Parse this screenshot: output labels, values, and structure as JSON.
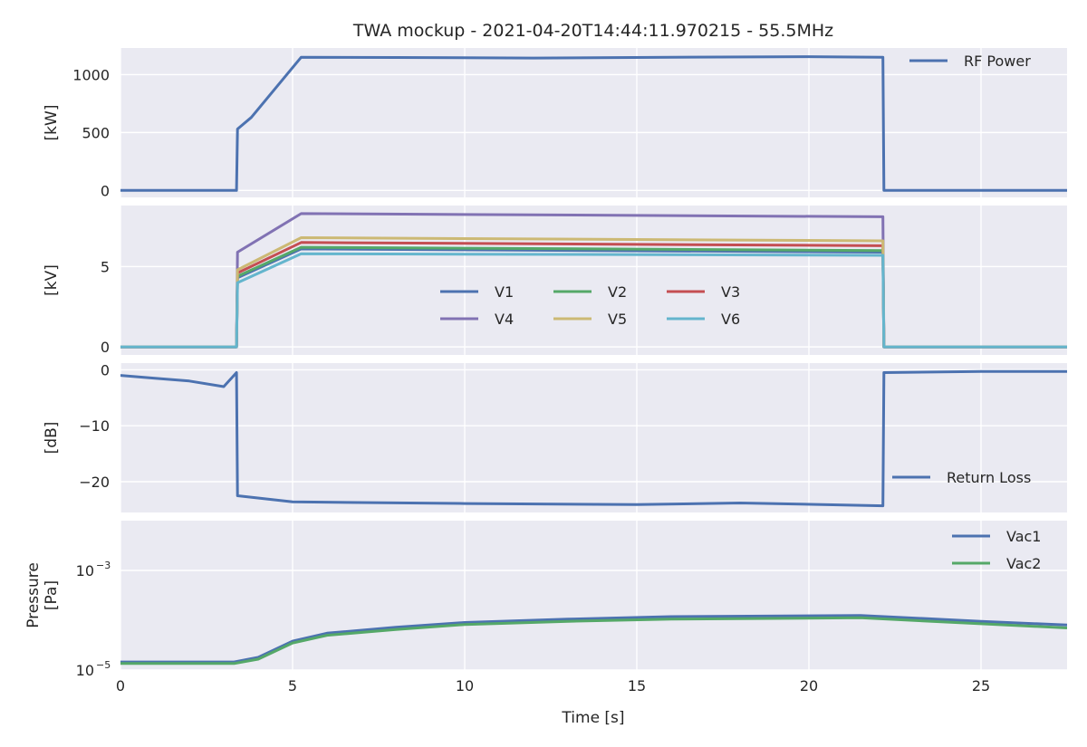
{
  "title": "TWA mockup - 2021-04-20T14:44:11.970215 - 55.5MHz",
  "xlabel": "Time [s]",
  "xlim": [
    0,
    27.5
  ],
  "xticks": [
    0,
    5,
    10,
    15,
    20,
    25
  ],
  "colors": {
    "background": "#EAEAF2",
    "grid": "#FFFFFF",
    "blue": "#4C72B0",
    "green": "#55A868",
    "red": "#C44E52",
    "purple": "#8172B3",
    "gold": "#CCB974",
    "cyan": "#64B5CD"
  },
  "chart_data": [
    {
      "type": "line",
      "ylabel": "[kW]",
      "ylim": [
        -60,
        1230
      ],
      "yticks": [
        0,
        500,
        1000
      ],
      "grid": true,
      "legend_location": "top-right",
      "series": [
        {
          "name": "RF Power",
          "color": "#4C72B0",
          "points": [
            [
              0,
              0
            ],
            [
              3.37,
              0
            ],
            [
              3.4,
              530
            ],
            [
              3.8,
              630
            ],
            [
              5.25,
              1150
            ],
            [
              8,
              1148
            ],
            [
              12,
              1143
            ],
            [
              16,
              1150
            ],
            [
              20,
              1155
            ],
            [
              22.15,
              1150
            ],
            [
              22.18,
              0
            ],
            [
              27.5,
              0
            ]
          ]
        }
      ]
    },
    {
      "type": "line",
      "ylabel": "[kV]",
      "ylim": [
        -0.5,
        8.8
      ],
      "yticks": [
        0,
        5
      ],
      "grid": true,
      "legend_location": "center",
      "series": [
        {
          "name": "V1",
          "color": "#4C72B0",
          "points": [
            [
              0,
              0
            ],
            [
              3.37,
              0
            ],
            [
              3.4,
              4.3
            ],
            [
              5.25,
              6.1
            ],
            [
              22.15,
              5.9
            ],
            [
              22.18,
              0
            ],
            [
              27.5,
              0
            ]
          ]
        },
        {
          "name": "V2",
          "color": "#55A868",
          "points": [
            [
              0,
              0
            ],
            [
              3.37,
              0
            ],
            [
              3.4,
              4.4
            ],
            [
              5.25,
              6.2
            ],
            [
              22.15,
              6.0
            ],
            [
              22.18,
              0
            ],
            [
              27.5,
              0
            ]
          ]
        },
        {
          "name": "V3",
          "color": "#C44E52",
          "points": [
            [
              0,
              0
            ],
            [
              3.37,
              0
            ],
            [
              3.4,
              4.6
            ],
            [
              5.25,
              6.5
            ],
            [
              22.15,
              6.3
            ],
            [
              22.18,
              0
            ],
            [
              27.5,
              0
            ]
          ]
        },
        {
          "name": "V4",
          "color": "#8172B3",
          "points": [
            [
              0,
              0
            ],
            [
              3.37,
              0
            ],
            [
              3.4,
              5.9
            ],
            [
              5.25,
              8.3
            ],
            [
              22.15,
              8.1
            ],
            [
              22.18,
              0
            ],
            [
              27.5,
              0
            ]
          ]
        },
        {
          "name": "V5",
          "color": "#CCB974",
          "points": [
            [
              0,
              0
            ],
            [
              3.37,
              0
            ],
            [
              3.4,
              4.8
            ],
            [
              5.25,
              6.8
            ],
            [
              22.15,
              6.6
            ],
            [
              22.18,
              0
            ],
            [
              27.5,
              0
            ]
          ]
        },
        {
          "name": "V6",
          "color": "#64B5CD",
          "points": [
            [
              0,
              0
            ],
            [
              3.37,
              0
            ],
            [
              3.4,
              4.0
            ],
            [
              5.25,
              5.8
            ],
            [
              22.15,
              5.7
            ],
            [
              22.18,
              0
            ],
            [
              27.5,
              0
            ]
          ]
        }
      ]
    },
    {
      "type": "line",
      "ylabel": "[dB]",
      "ylim": [
        -25.5,
        1.2
      ],
      "yticks": [
        0,
        -10,
        -20
      ],
      "grid": true,
      "legend_location": "bottom-right",
      "series": [
        {
          "name": "Return Loss",
          "color": "#4C72B0",
          "points": [
            [
              0,
              -1
            ],
            [
              1,
              -1.5
            ],
            [
              2,
              -2
            ],
            [
              3,
              -3
            ],
            [
              3.37,
              -0.5
            ],
            [
              3.4,
              -22.5
            ],
            [
              5,
              -23.6
            ],
            [
              10,
              -23.9
            ],
            [
              15,
              -24.1
            ],
            [
              18,
              -23.8
            ],
            [
              22.15,
              -24.3
            ],
            [
              22.18,
              -0.5
            ],
            [
              25,
              -0.3
            ],
            [
              27.5,
              -0.3
            ]
          ]
        }
      ]
    },
    {
      "type": "line",
      "ylabel": "Pressure\n[Pa]",
      "yscale": "log",
      "ylim": [
        1e-05,
        0.01
      ],
      "yticks": [
        "10−5",
        "10−3"
      ],
      "grid": true,
      "legend_location": "top-right",
      "series": [
        {
          "name": "Vac1",
          "color": "#4C72B0",
          "points": [
            [
              0,
              1.45e-05
            ],
            [
              3.3,
              1.45e-05
            ],
            [
              4,
              1.8e-05
            ],
            [
              5,
              3.8e-05
            ],
            [
              6,
              5.5e-05
            ],
            [
              8,
              7.2e-05
            ],
            [
              10,
              9e-05
            ],
            [
              13,
              0.000105
            ],
            [
              16,
              0.000118
            ],
            [
              21.5,
              0.000125
            ],
            [
              25,
              9.5e-05
            ],
            [
              27.5,
              8e-05
            ]
          ]
        },
        {
          "name": "Vac2",
          "color": "#55A868",
          "points": [
            [
              0,
              1.35e-05
            ],
            [
              3.3,
              1.35e-05
            ],
            [
              4,
              1.65e-05
            ],
            [
              5,
              3.5e-05
            ],
            [
              6,
              5e-05
            ],
            [
              8,
              6.5e-05
            ],
            [
              10,
              8.2e-05
            ],
            [
              13,
              9.5e-05
            ],
            [
              16,
              0.000105
            ],
            [
              21.5,
              0.000112
            ],
            [
              25,
              8.5e-05
            ],
            [
              27.5,
              7e-05
            ]
          ]
        }
      ]
    }
  ]
}
